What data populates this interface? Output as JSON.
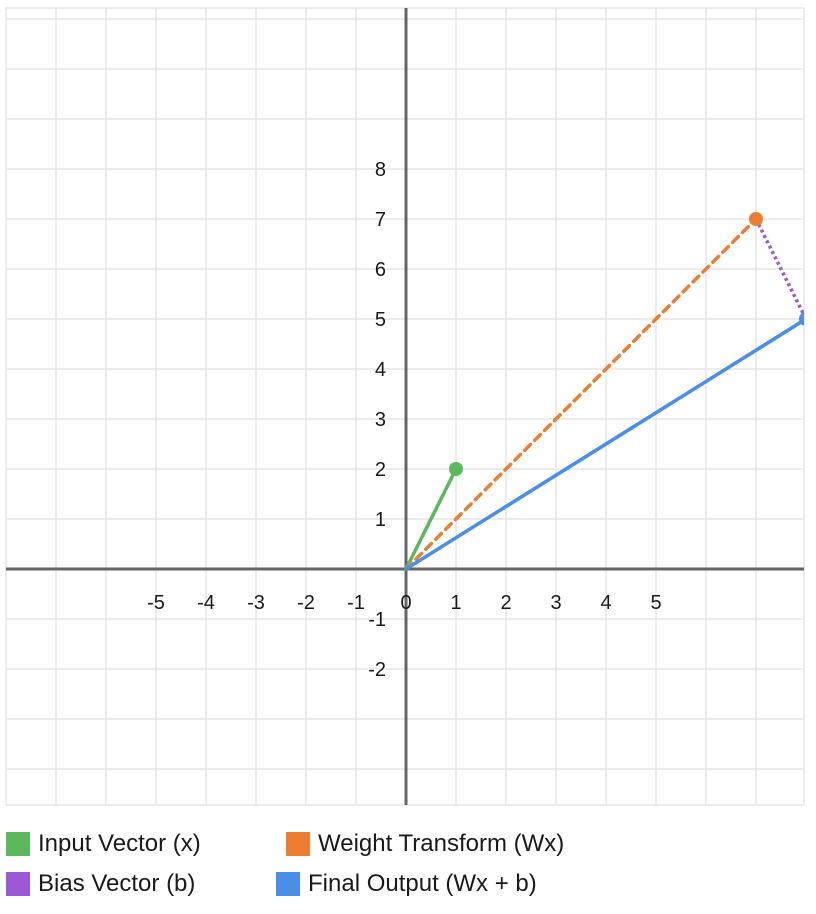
{
  "chart_data": {
    "type": "line",
    "title": "",
    "xlabel": "",
    "ylabel": "",
    "xlim": [
      -8,
      8
    ],
    "ylim": [
      -4.75,
      11.25
    ],
    "x_ticks": [
      -5,
      -4,
      -3,
      -2,
      -1,
      0,
      1,
      2,
      3,
      4,
      5
    ],
    "y_ticks": [
      -2,
      -1,
      1,
      2,
      3,
      4,
      5,
      6,
      7,
      8
    ],
    "grid": true,
    "legend_position": "bottom",
    "series": [
      {
        "name": "Input Vector (x)",
        "color": "#5cb85c",
        "style": "solid",
        "marker": "end",
        "points": [
          [
            0,
            0
          ],
          [
            1,
            2
          ]
        ]
      },
      {
        "name": "Weight Transform (Wx)",
        "color": "#ed7d31",
        "style": "dashed",
        "marker": "end",
        "points": [
          [
            0,
            0
          ],
          [
            7,
            7
          ]
        ]
      },
      {
        "name": "Bias Vector (b)",
        "color": "#9b59d6",
        "style": "dotted",
        "marker": "none",
        "points": [
          [
            7,
            7
          ],
          [
            8,
            5
          ]
        ]
      },
      {
        "name": "Final Output (Wx + b)",
        "color": "#4a8ee8",
        "style": "solid",
        "marker": "end",
        "points": [
          [
            0,
            0
          ],
          [
            8,
            5
          ]
        ]
      }
    ]
  },
  "legend": {
    "items": [
      {
        "label": "Input Vector (x)",
        "color": "#5cb85c"
      },
      {
        "label": "Weight Transform (Wx)",
        "color": "#ed7d31"
      },
      {
        "label": "Bias Vector (b)",
        "color": "#9b59d6"
      },
      {
        "label": "Final Output (Wx + b)",
        "color": "#4a8ee8"
      }
    ]
  }
}
